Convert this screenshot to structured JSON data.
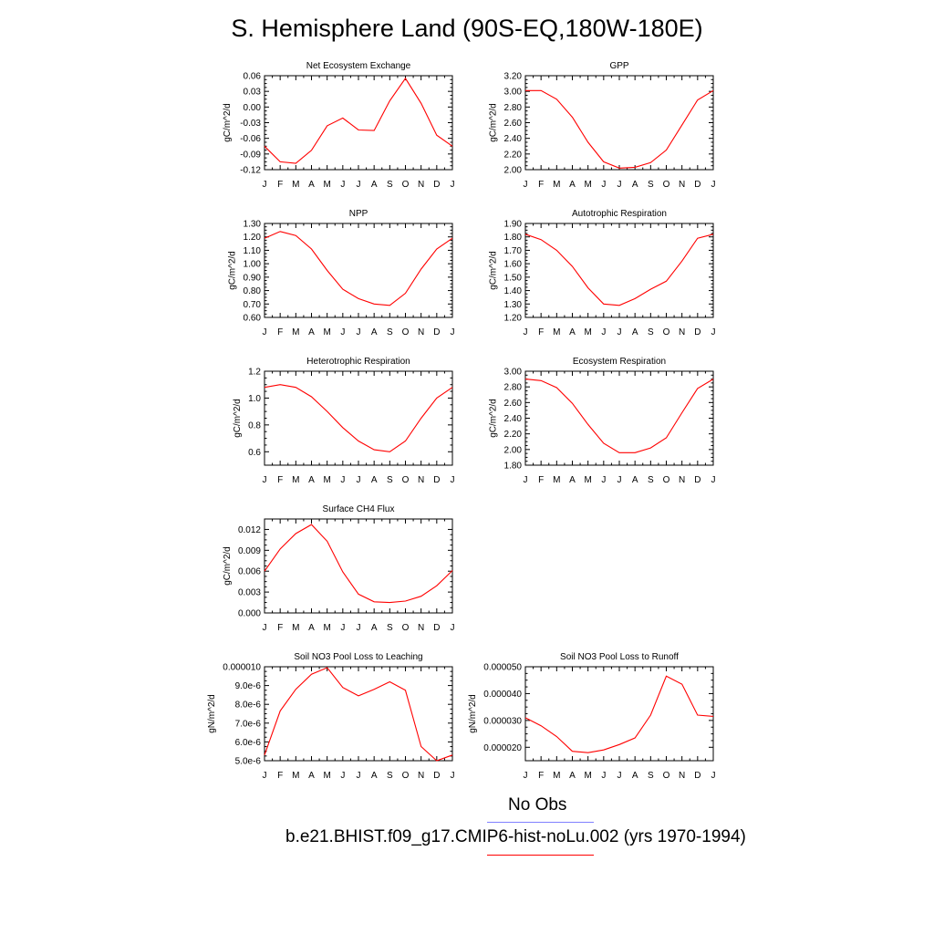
{
  "page": {
    "title": "S. Hemisphere Land (90S-EQ,180W-180E)"
  },
  "legend": {
    "obs_label": "No Obs",
    "obs_color": "#8080ff",
    "run_label": "b.e21.BHIST.f09_g17.CMIP6-hist-noLu.002 (yrs 1970-1994)",
    "run_color": "#ff0000"
  },
  "chart_data": [
    {
      "type": "line",
      "title": "Net Ecosystem Exchange",
      "ylabel": "gC/m^2/d",
      "categories": [
        "J",
        "F",
        "M",
        "A",
        "M",
        "J",
        "J",
        "A",
        "S",
        "O",
        "N",
        "D",
        "J"
      ],
      "ylim": [
        -0.12,
        0.06
      ],
      "yticks": [
        -0.12,
        -0.09,
        -0.06,
        -0.03,
        0.0,
        0.03,
        0.06
      ],
      "ytick_labels": [
        "-0.12",
        "-0.09",
        "-0.06",
        "-0.03",
        "0.00",
        "0.03",
        "0.06"
      ],
      "values": [
        -0.075,
        -0.105,
        -0.108,
        -0.083,
        -0.036,
        -0.021,
        -0.044,
        -0.045,
        0.012,
        0.055,
        0.007,
        -0.054,
        -0.075
      ],
      "color": "#ff0000"
    },
    {
      "type": "line",
      "title": "GPP",
      "ylabel": "gC/m^2/d",
      "categories": [
        "J",
        "F",
        "M",
        "A",
        "M",
        "J",
        "J",
        "A",
        "S",
        "O",
        "N",
        "D",
        "J"
      ],
      "ylim": [
        2.0,
        3.2
      ],
      "yticks": [
        2.0,
        2.2,
        2.4,
        2.6,
        2.8,
        3.0,
        3.2
      ],
      "ytick_labels": [
        "2.00",
        "2.20",
        "2.40",
        "2.60",
        "2.80",
        "3.00",
        "3.20"
      ],
      "values": [
        3.01,
        3.01,
        2.9,
        2.67,
        2.35,
        2.1,
        2.02,
        2.03,
        2.09,
        2.25,
        2.57,
        2.89,
        3.01
      ],
      "color": "#ff0000"
    },
    {
      "type": "line",
      "title": "NPP",
      "ylabel": "gC/m^2/d",
      "categories": [
        "J",
        "F",
        "M",
        "A",
        "M",
        "J",
        "J",
        "A",
        "S",
        "O",
        "N",
        "D",
        "J"
      ],
      "ylim": [
        0.6,
        1.3
      ],
      "yticks": [
        0.6,
        0.7,
        0.8,
        0.9,
        1.0,
        1.1,
        1.2,
        1.3
      ],
      "ytick_labels": [
        "0.60",
        "0.70",
        "0.80",
        "0.90",
        "1.00",
        "1.10",
        "1.20",
        "1.30"
      ],
      "values": [
        1.19,
        1.24,
        1.21,
        1.11,
        0.95,
        0.81,
        0.74,
        0.7,
        0.69,
        0.78,
        0.96,
        1.11,
        1.19
      ],
      "color": "#ff0000"
    },
    {
      "type": "line",
      "title": "Autotrophic Respiration",
      "ylabel": "gC/m^2/d",
      "categories": [
        "J",
        "F",
        "M",
        "A",
        "M",
        "J",
        "J",
        "A",
        "S",
        "O",
        "N",
        "D",
        "J"
      ],
      "ylim": [
        1.2,
        1.9
      ],
      "yticks": [
        1.2,
        1.3,
        1.4,
        1.5,
        1.6,
        1.7,
        1.8,
        1.9
      ],
      "ytick_labels": [
        "1.20",
        "1.30",
        "1.40",
        "1.50",
        "1.60",
        "1.70",
        "1.80",
        "1.90"
      ],
      "values": [
        1.82,
        1.78,
        1.7,
        1.58,
        1.42,
        1.3,
        1.29,
        1.34,
        1.41,
        1.47,
        1.62,
        1.79,
        1.82
      ],
      "color": "#ff0000"
    },
    {
      "type": "line",
      "title": "Heterotrophic Respiration",
      "ylabel": "gC/m^2/d",
      "categories": [
        "J",
        "F",
        "M",
        "A",
        "M",
        "J",
        "J",
        "A",
        "S",
        "O",
        "N",
        "D",
        "J"
      ],
      "ylim": [
        0.5,
        1.2
      ],
      "yticks": [
        0.6,
        0.8,
        1.0,
        1.2
      ],
      "ytick_labels": [
        "0.6",
        "0.8",
        "1.0",
        "1.2"
      ],
      "values": [
        1.08,
        1.1,
        1.08,
        1.01,
        0.9,
        0.78,
        0.68,
        0.615,
        0.6,
        0.68,
        0.85,
        1.0,
        1.08
      ],
      "color": "#ff0000"
    },
    {
      "type": "line",
      "title": "Ecosystem Respiration",
      "ylabel": "gC/m^2/d",
      "categories": [
        "J",
        "F",
        "M",
        "A",
        "M",
        "J",
        "J",
        "A",
        "S",
        "O",
        "N",
        "D",
        "J"
      ],
      "ylim": [
        1.8,
        3.0
      ],
      "yticks": [
        1.8,
        2.0,
        2.2,
        2.4,
        2.6,
        2.8,
        3.0
      ],
      "ytick_labels": [
        "1.80",
        "2.00",
        "2.20",
        "2.40",
        "2.60",
        "2.80",
        "3.00"
      ],
      "values": [
        2.9,
        2.88,
        2.79,
        2.59,
        2.32,
        2.08,
        1.96,
        1.96,
        2.02,
        2.15,
        2.47,
        2.78,
        2.9
      ],
      "color": "#ff0000"
    },
    {
      "type": "line",
      "title": "Surface CH4 Flux",
      "ylabel": "gC/m^2/d",
      "categories": [
        "J",
        "F",
        "M",
        "A",
        "M",
        "J",
        "J",
        "A",
        "S",
        "O",
        "N",
        "D",
        "J"
      ],
      "ylim": [
        0.0,
        0.0135
      ],
      "yticks": [
        0.0,
        0.003,
        0.006,
        0.009,
        0.012
      ],
      "ytick_labels": [
        "0.000",
        "0.003",
        "0.006",
        "0.009",
        "0.012"
      ],
      "values": [
        0.006,
        0.0092,
        0.0114,
        0.0127,
        0.0103,
        0.0059,
        0.0027,
        0.0016,
        0.0015,
        0.0017,
        0.0024,
        0.0039,
        0.0061
      ],
      "color": "#ff0000"
    },
    {
      "type": "line",
      "title": "Soil NO3 Pool Loss to Leaching",
      "ylabel": "gN/m^2/d",
      "categories": [
        "J",
        "F",
        "M",
        "A",
        "M",
        "J",
        "J",
        "A",
        "S",
        "O",
        "N",
        "D",
        "J"
      ],
      "ylim": [
        5e-06,
        1e-05
      ],
      "yticks": [
        5e-06,
        6e-06,
        7e-06,
        8e-06,
        9e-06,
        1e-05
      ],
      "ytick_labels": [
        "5.0e-6",
        "6.0e-6",
        "7.0e-6",
        "8.0e-6",
        "9.0e-6",
        "0.000010"
      ],
      "values": [
        5.3e-06,
        7.65e-06,
        8.8e-06,
        9.6e-06,
        9.95e-06,
        8.9e-06,
        8.45e-06,
        8.8e-06,
        9.2e-06,
        8.75e-06,
        5.75e-06,
        5e-06,
        5.3e-06
      ],
      "color": "#ff0000"
    },
    {
      "type": "line",
      "title": "Soil NO3 Pool Loss to Runoff",
      "ylabel": "gN/m^2/d",
      "categories": [
        "J",
        "F",
        "M",
        "A",
        "M",
        "J",
        "J",
        "A",
        "S",
        "O",
        "N",
        "D",
        "J"
      ],
      "ylim": [
        1.5e-05,
        5e-05
      ],
      "yticks": [
        2e-05,
        3e-05,
        4e-05,
        5e-05
      ],
      "ytick_labels": [
        "0.000020",
        "0.000030",
        "0.000040",
        "0.000050"
      ],
      "values": [
        3.1e-05,
        2.8e-05,
        2.4e-05,
        1.85e-05,
        1.8e-05,
        1.9e-05,
        2.1e-05,
        2.35e-05,
        3.2e-05,
        4.65e-05,
        4.35e-05,
        3.2e-05,
        3.15e-05
      ],
      "color": "#ff0000"
    }
  ]
}
